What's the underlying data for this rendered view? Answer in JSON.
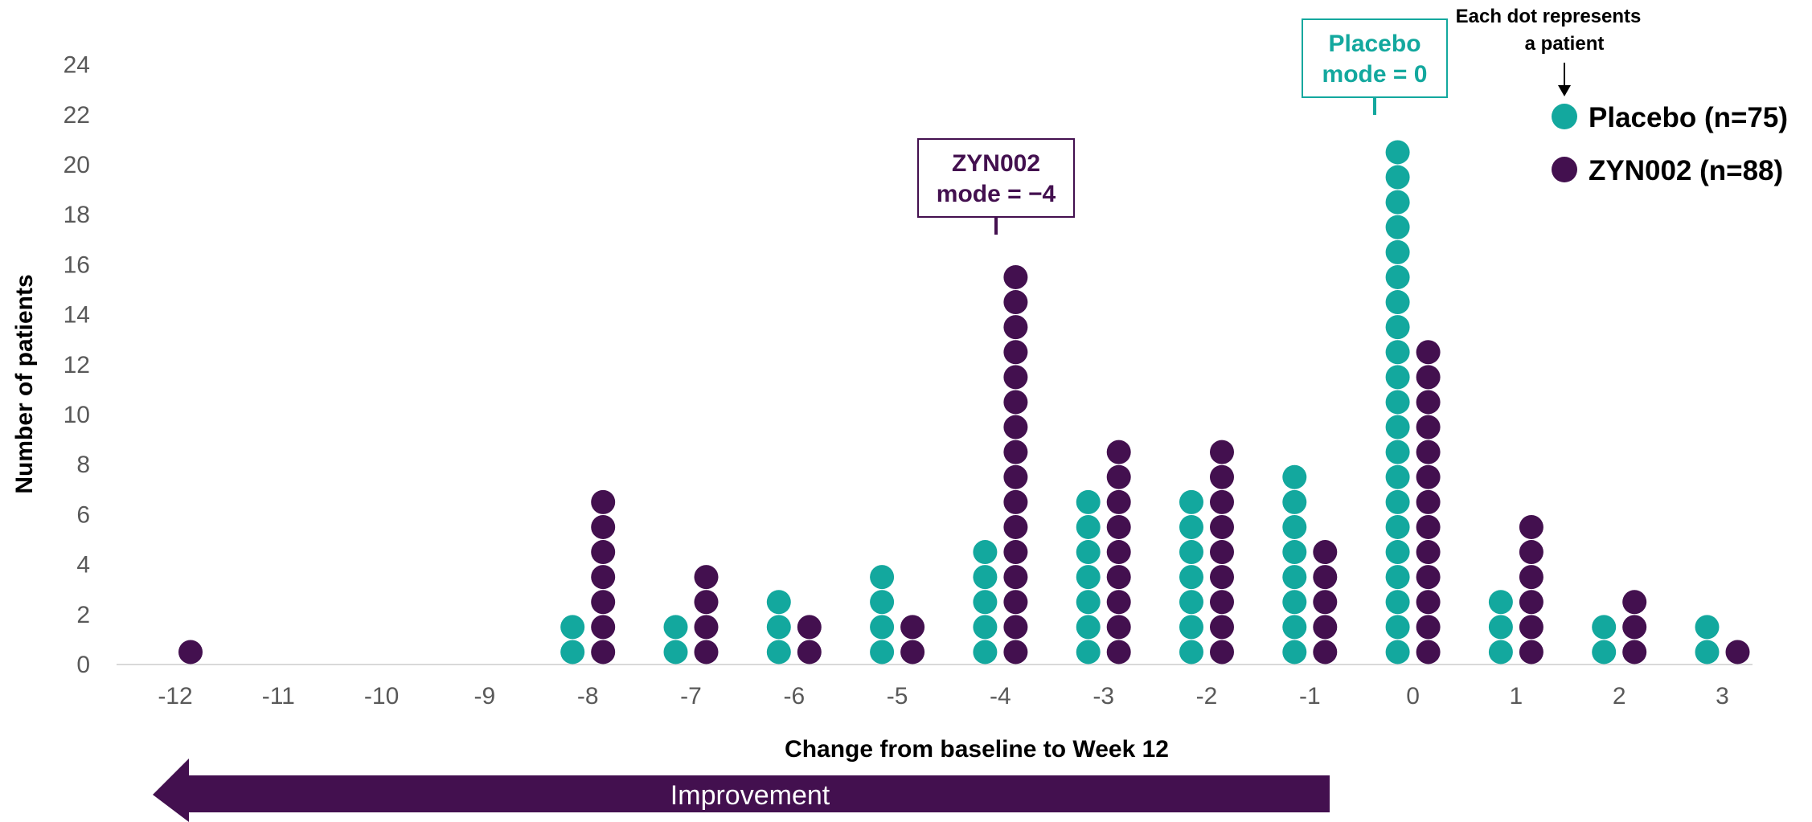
{
  "chart_data": {
    "type": "scatter",
    "subtype": "dot-plot",
    "xlabel": "Change from baseline to Week 12",
    "ylabel": "Number of patients",
    "xlim": [
      -12,
      3
    ],
    "ylim": [
      0,
      24
    ],
    "x_ticks": [
      "-12",
      "-11",
      "-10",
      "-9",
      "-8",
      "-7",
      "-6",
      "-5",
      "-4",
      "-3",
      "-2",
      "-1",
      "0",
      "1",
      "2",
      "3"
    ],
    "y_ticks": [
      "0",
      "2",
      "4",
      "6",
      "8",
      "10",
      "12",
      "14",
      "16",
      "18",
      "20",
      "22",
      "24"
    ],
    "x": [
      -12,
      -11,
      -10,
      -9,
      -8,
      -7,
      -6,
      -5,
      -4,
      -3,
      -2,
      -1,
      0,
      1,
      2,
      3
    ],
    "series": [
      {
        "name": "Placebo (n=75)",
        "color": "#13a89e",
        "values": [
          0,
          0,
          0,
          0,
          2,
          2,
          3,
          4,
          5,
          7,
          7,
          8,
          21,
          3,
          2,
          2
        ]
      },
      {
        "name": "ZYN002 (n=88)",
        "color": "#43104f",
        "values": [
          1,
          0,
          0,
          0,
          7,
          4,
          2,
          2,
          16,
          9,
          9,
          5,
          13,
          6,
          3,
          1
        ]
      }
    ],
    "annotations": {
      "zyn_mode_line1": "ZYN002",
      "zyn_mode_line2": "mode = −4",
      "placebo_mode_line1": "Placebo",
      "placebo_mode_line2": "mode = 0",
      "dot_note_line1": "Each dot represents",
      "dot_note_line2": "a patient",
      "improvement": "Improvement"
    },
    "legend_position": "top-right",
    "grid": false
  }
}
